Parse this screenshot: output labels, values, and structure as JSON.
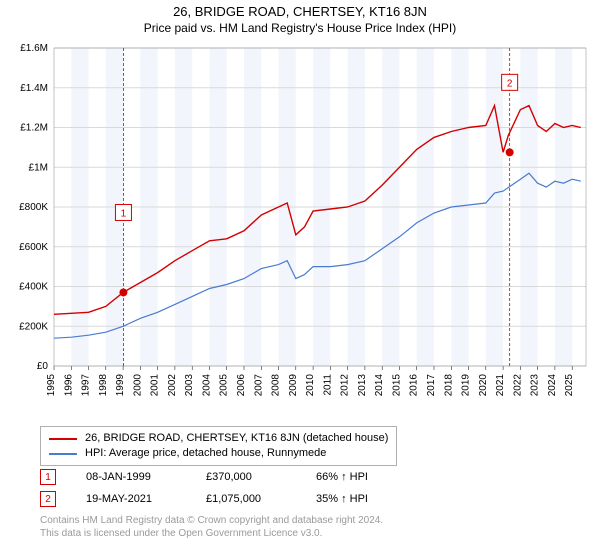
{
  "title_line1": "26, BRIDGE ROAD, CHERTSEY, KT16 8JN",
  "title_line2": "Price paid vs. HM Land Registry's House Price Index (HPI)",
  "chart": {
    "type": "line",
    "background_color": "#ffffff",
    "plot_bg_band_color": "#f2f6fc",
    "grid_color": "#d9d9d9",
    "xlim": [
      1995,
      2025.8
    ],
    "ylim": [
      0,
      1600000
    ],
    "ytick_step": 200000,
    "yticks_labels": [
      "£0",
      "£200K",
      "£400K",
      "£600K",
      "£800K",
      "£1M",
      "£1.2M",
      "£1.4M",
      "£1.6M"
    ],
    "xticks": [
      1995,
      1996,
      1997,
      1998,
      1999,
      2000,
      2001,
      2002,
      2003,
      2004,
      2005,
      2006,
      2007,
      2008,
      2009,
      2010,
      2011,
      2012,
      2013,
      2014,
      2015,
      2016,
      2017,
      2018,
      2019,
      2020,
      2021,
      2022,
      2023,
      2024,
      2025
    ],
    "label_fontsize": 10,
    "series": [
      {
        "name": "price_paid",
        "color": "#d40000",
        "width": 1.4,
        "points": [
          [
            1995,
            260000
          ],
          [
            1996,
            265000
          ],
          [
            1997,
            270000
          ],
          [
            1998,
            300000
          ],
          [
            1999,
            370000
          ],
          [
            2000,
            420000
          ],
          [
            2001,
            470000
          ],
          [
            2002,
            530000
          ],
          [
            2003,
            580000
          ],
          [
            2004,
            630000
          ],
          [
            2005,
            640000
          ],
          [
            2006,
            680000
          ],
          [
            2007,
            760000
          ],
          [
            2008,
            800000
          ],
          [
            2008.5,
            820000
          ],
          [
            2009,
            660000
          ],
          [
            2009.5,
            700000
          ],
          [
            2010,
            780000
          ],
          [
            2011,
            790000
          ],
          [
            2012,
            800000
          ],
          [
            2013,
            830000
          ],
          [
            2014,
            910000
          ],
          [
            2015,
            1000000
          ],
          [
            2016,
            1090000
          ],
          [
            2017,
            1150000
          ],
          [
            2018,
            1180000
          ],
          [
            2019,
            1200000
          ],
          [
            2020,
            1210000
          ],
          [
            2020.5,
            1310000
          ],
          [
            2021,
            1075000
          ],
          [
            2021.3,
            1160000
          ],
          [
            2022,
            1290000
          ],
          [
            2022.5,
            1310000
          ],
          [
            2023,
            1210000
          ],
          [
            2023.5,
            1180000
          ],
          [
            2024,
            1220000
          ],
          [
            2024.5,
            1200000
          ],
          [
            2025,
            1210000
          ],
          [
            2025.5,
            1200000
          ]
        ]
      },
      {
        "name": "hpi",
        "color": "#4a7bd0",
        "width": 1.2,
        "points": [
          [
            1995,
            140000
          ],
          [
            1996,
            145000
          ],
          [
            1997,
            155000
          ],
          [
            1998,
            170000
          ],
          [
            1999,
            200000
          ],
          [
            2000,
            240000
          ],
          [
            2001,
            270000
          ],
          [
            2002,
            310000
          ],
          [
            2003,
            350000
          ],
          [
            2004,
            390000
          ],
          [
            2005,
            410000
          ],
          [
            2006,
            440000
          ],
          [
            2007,
            490000
          ],
          [
            2008,
            510000
          ],
          [
            2008.5,
            530000
          ],
          [
            2009,
            440000
          ],
          [
            2009.5,
            460000
          ],
          [
            2010,
            500000
          ],
          [
            2011,
            500000
          ],
          [
            2012,
            510000
          ],
          [
            2013,
            530000
          ],
          [
            2014,
            590000
          ],
          [
            2015,
            650000
          ],
          [
            2016,
            720000
          ],
          [
            2017,
            770000
          ],
          [
            2018,
            800000
          ],
          [
            2019,
            810000
          ],
          [
            2020,
            820000
          ],
          [
            2020.5,
            870000
          ],
          [
            2021,
            880000
          ],
          [
            2022,
            940000
          ],
          [
            2022.5,
            970000
          ],
          [
            2023,
            920000
          ],
          [
            2023.5,
            900000
          ],
          [
            2024,
            930000
          ],
          [
            2024.5,
            920000
          ],
          [
            2025,
            940000
          ],
          [
            2025.5,
            930000
          ]
        ]
      }
    ],
    "markers": [
      {
        "id": "1",
        "x": 1999.02,
        "y": 370000,
        "color": "#d40000",
        "label_y_offset": -80
      },
      {
        "id": "2",
        "x": 2021.38,
        "y": 1075000,
        "color": "#d40000",
        "label_y_offset": -70
      }
    ]
  },
  "legend": {
    "items": [
      {
        "color": "#d40000",
        "label": "26, BRIDGE ROAD, CHERTSEY, KT16 8JN (detached house)"
      },
      {
        "color": "#4a7bd0",
        "label": "HPI: Average price, detached house, Runnymede"
      }
    ]
  },
  "transactions": [
    {
      "marker_id": "1",
      "marker_color": "#d40000",
      "date": "08-JAN-1999",
      "price": "£370,000",
      "delta": "66% ↑ HPI"
    },
    {
      "marker_id": "2",
      "marker_color": "#d40000",
      "date": "19-MAY-2021",
      "price": "£1,075,000",
      "delta": "35% ↑ HPI"
    }
  ],
  "footer_line1": "Contains HM Land Registry data © Crown copyright and database right 2024.",
  "footer_line2": "This data is licensed under the Open Government Licence v3.0."
}
